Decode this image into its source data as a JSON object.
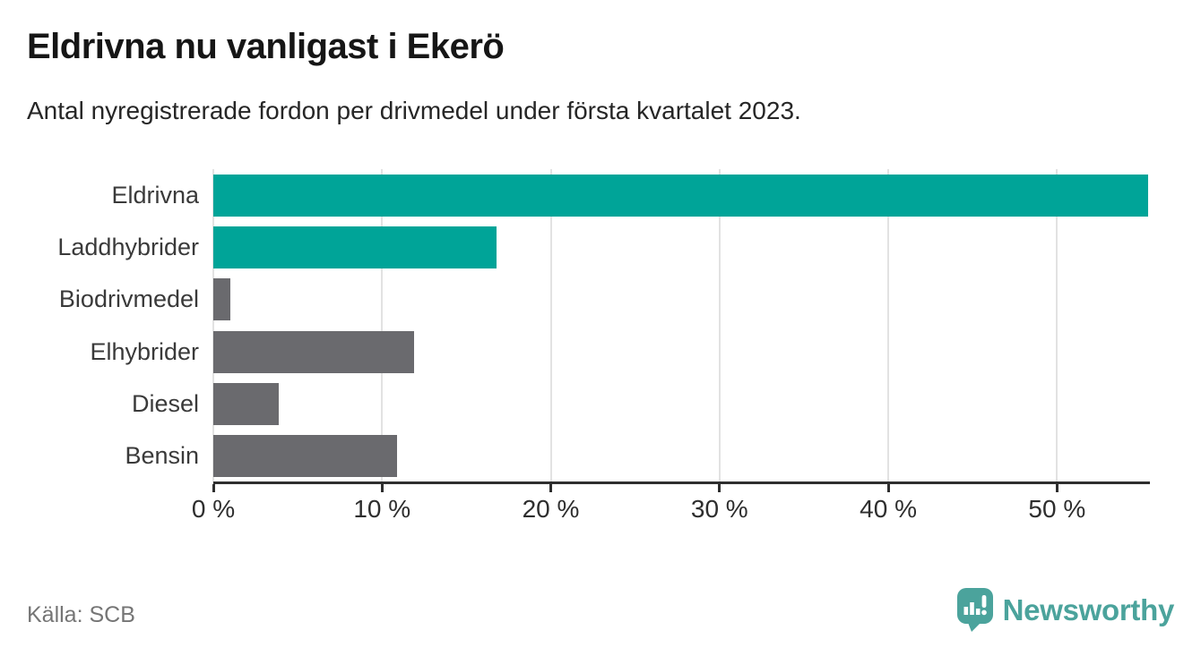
{
  "chart_data": {
    "type": "bar",
    "orientation": "horizontal",
    "title": "Eldrivna nu vanligast i Ekerö",
    "subtitle": "Antal nyregistrerade fordon per drivmedel under första kvartalet 2023.",
    "categories": [
      "Eldrivna",
      "Laddhybrider",
      "Biodrivmedel",
      "Elhybrider",
      "Diesel",
      "Bensin"
    ],
    "values": [
      55.4,
      16.8,
      1.0,
      11.9,
      3.9,
      10.9
    ],
    "unit": "%",
    "xlim": [
      0,
      55.4
    ],
    "x_ticks": [
      0,
      10,
      20,
      30,
      40,
      50
    ],
    "x_tick_labels": [
      "0 %",
      "10 %",
      "20 %",
      "30 %",
      "40 %",
      "50 %"
    ],
    "bar_colors": [
      "#00a498",
      "#00a498",
      "#6a6a6e",
      "#6a6a6e",
      "#6a6a6e",
      "#6a6a6e"
    ],
    "highlight_color": "#00a498",
    "default_color": "#6a6a6e",
    "grid": "vertical",
    "gridline_color": "#e2e2e2",
    "axis_color": "#2e2e2e",
    "legend": "none"
  },
  "footer": {
    "source": "Källa: SCB",
    "brand": "Newsworthy",
    "brand_color": "#4ba39c",
    "logo_icon": "newsworthy-bar-chart-bubble-icon"
  }
}
